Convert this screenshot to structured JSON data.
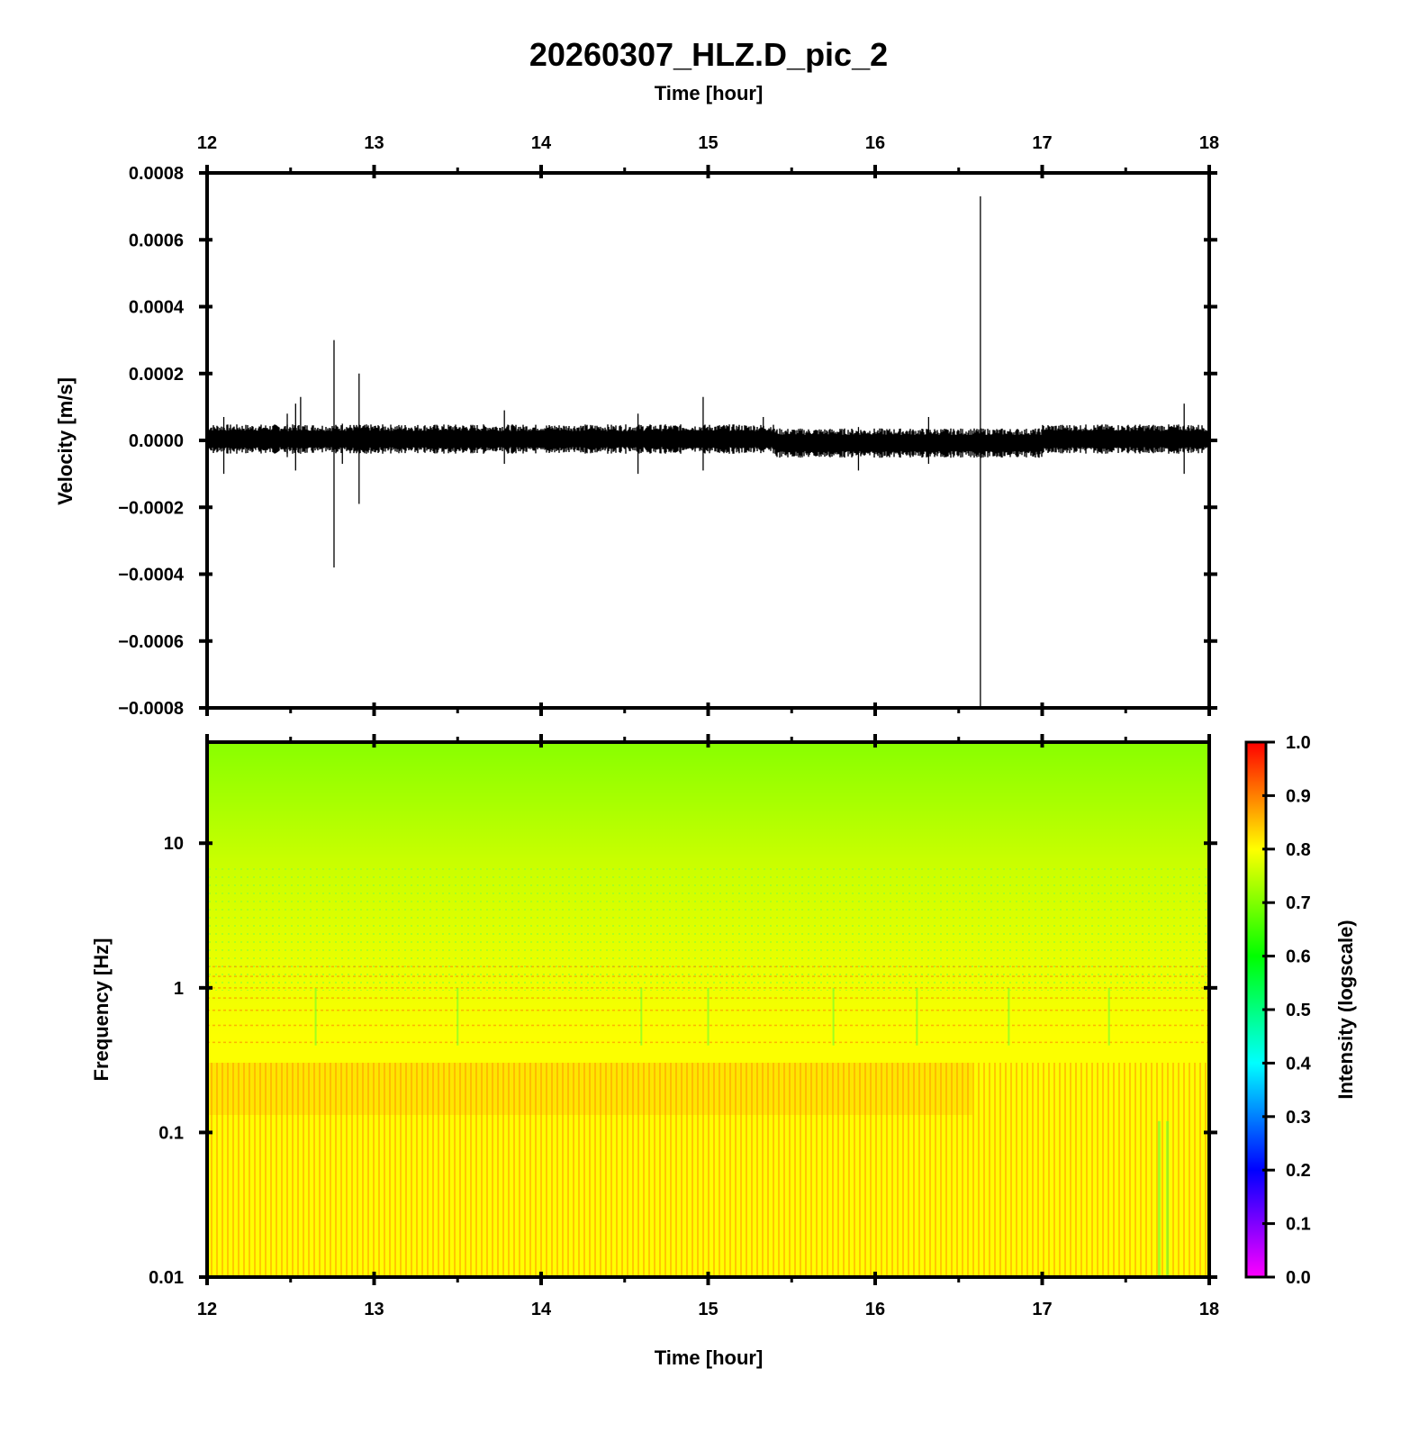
{
  "chart_data": [
    {
      "type": "line",
      "title": "20260307_HLZ.D_pic_2",
      "xlabel": "Time [hour]",
      "ylabel": "Velocity [m/s]",
      "xlim": [
        12,
        18
      ],
      "ylim": [
        -0.0008,
        0.0008
      ],
      "xticks": [
        "12",
        "13",
        "14",
        "15",
        "16",
        "17",
        "18"
      ],
      "yticks": [
        "0.0008",
        "0.0006",
        "0.0004",
        "0.0002",
        "0.0000",
        "−0.0002",
        "−0.0004",
        "−0.0006",
        "−0.0008"
      ],
      "ytick_values": [
        0.0008,
        0.0006,
        0.0004,
        0.0002,
        0,
        -0.0002,
        -0.0004,
        -0.0006,
        -0.0008
      ],
      "xticks_position": "top",
      "grid": false,
      "noise_band_amplitude": 4e-05,
      "spikes": [
        {
          "t": 12.1,
          "max": 7e-05,
          "min": -0.0001
        },
        {
          "t": 12.48,
          "max": 8e-05,
          "min": -5e-05
        },
        {
          "t": 12.53,
          "max": 0.00011,
          "min": -9e-05
        },
        {
          "t": 12.56,
          "max": 0.00013,
          "min": -4e-05
        },
        {
          "t": 12.76,
          "max": 0.0003,
          "min": -0.00038
        },
        {
          "t": 12.81,
          "max": 5e-05,
          "min": -7e-05
        },
        {
          "t": 12.91,
          "max": 0.0002,
          "min": -0.00019
        },
        {
          "t": 13.78,
          "max": 9e-05,
          "min": -7e-05
        },
        {
          "t": 14.58,
          "max": 8e-05,
          "min": -0.0001
        },
        {
          "t": 14.97,
          "max": 0.00013,
          "min": -9e-05
        },
        {
          "t": 15.33,
          "max": 7e-05,
          "min": -3e-05
        },
        {
          "t": 15.9,
          "max": 4e-05,
          "min": -9e-05
        },
        {
          "t": 16.32,
          "max": 7e-05,
          "min": -7e-05
        },
        {
          "t": 16.63,
          "max": 0.00073,
          "min": -0.0008
        },
        {
          "t": 17.85,
          "max": 0.00011,
          "min": -0.0001
        }
      ]
    },
    {
      "type": "heatmap",
      "xlabel": "Time [hour]",
      "ylabel": "Frequency [Hz]",
      "xlim": [
        12,
        18
      ],
      "ylim": [
        0.01,
        50
      ],
      "yscale": "log",
      "xticks": [
        "12",
        "13",
        "14",
        "15",
        "16",
        "17",
        "18"
      ],
      "yticks": [
        "10",
        "1",
        "0.1",
        "0.01"
      ],
      "ytick_values": [
        10,
        1,
        0.1,
        0.01
      ],
      "colorbar": {
        "label": "Intensity (logscale)",
        "range": [
          0,
          1
        ],
        "ticks": [
          "1.0",
          "0.9",
          "0.8",
          "0.7",
          "0.6",
          "0.5",
          "0.4",
          "0.3",
          "0.2",
          "0.1",
          "0.0"
        ],
        "tick_values": [
          1.0,
          0.9,
          0.8,
          0.7,
          0.6,
          0.5,
          0.4,
          0.3,
          0.2,
          0.1,
          0.0
        ],
        "colors": [
          "#ff00ff",
          "#0000ff",
          "#00ffff",
          "#00ff00",
          "#ffff00",
          "#ff0000"
        ]
      },
      "frequency_profile": [
        {
          "f": 50,
          "intensity": 0.65
        },
        {
          "f": 20,
          "intensity": 0.7
        },
        {
          "f": 10,
          "intensity": 0.73
        },
        {
          "f": 3,
          "intensity": 0.76
        },
        {
          "f": 1.3,
          "intensity": 0.8
        },
        {
          "f": 0.3,
          "intensity": 0.81
        },
        {
          "f": 0.1,
          "intensity": 0.8
        },
        {
          "f": 0.01,
          "intensity": 0.8
        }
      ]
    }
  ]
}
